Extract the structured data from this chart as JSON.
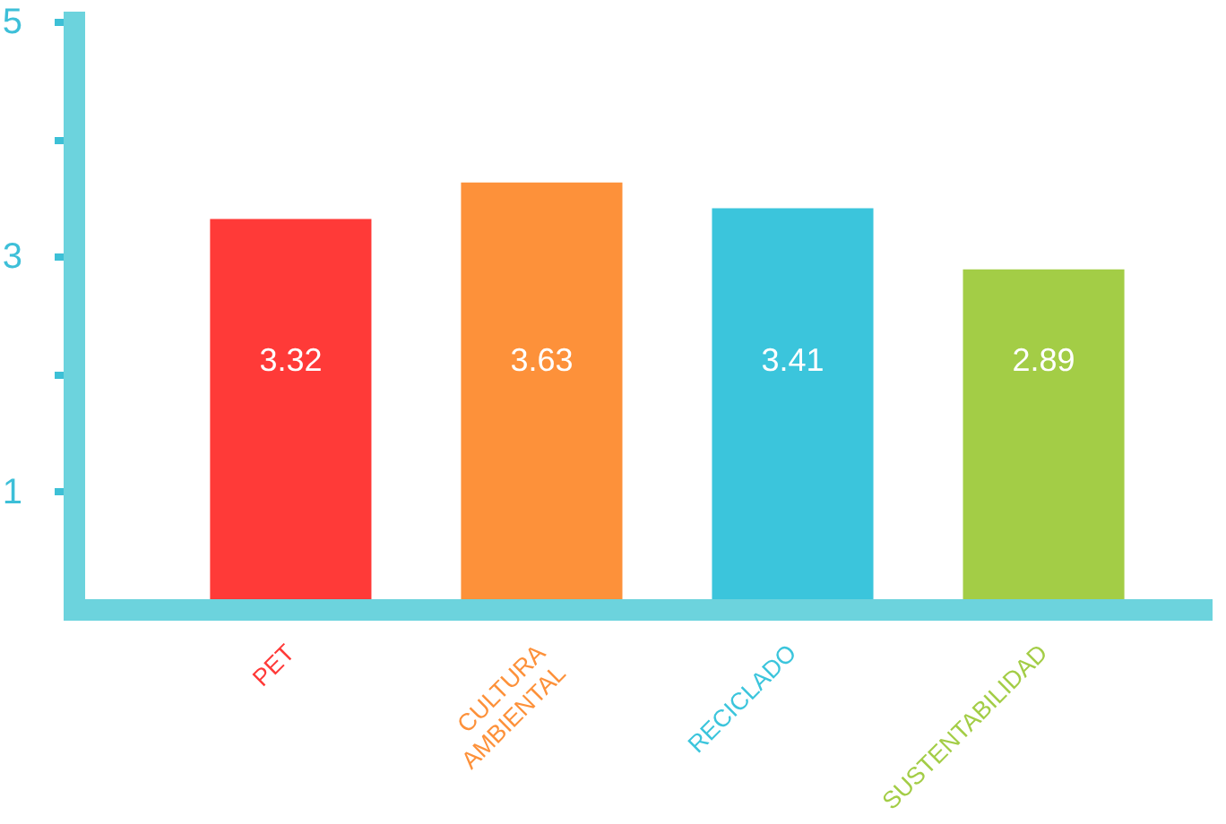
{
  "chart_data": {
    "type": "bar",
    "categories": [
      "PET",
      "CULTURA AMBIENTAL",
      "RECICLADO",
      "SUSTENTABILIDAD"
    ],
    "values": [
      3.32,
      3.63,
      3.41,
      2.89
    ],
    "colors": [
      "#ff3a38",
      "#fd913a",
      "#3bc5dc",
      "#a3cd46"
    ],
    "ylim": [
      0,
      5
    ],
    "yticks": [
      1,
      {
        "value": 2,
        "label": null
      },
      3,
      {
        "value": 4,
        "label": null
      },
      5
    ],
    "data_labels": true
  }
}
